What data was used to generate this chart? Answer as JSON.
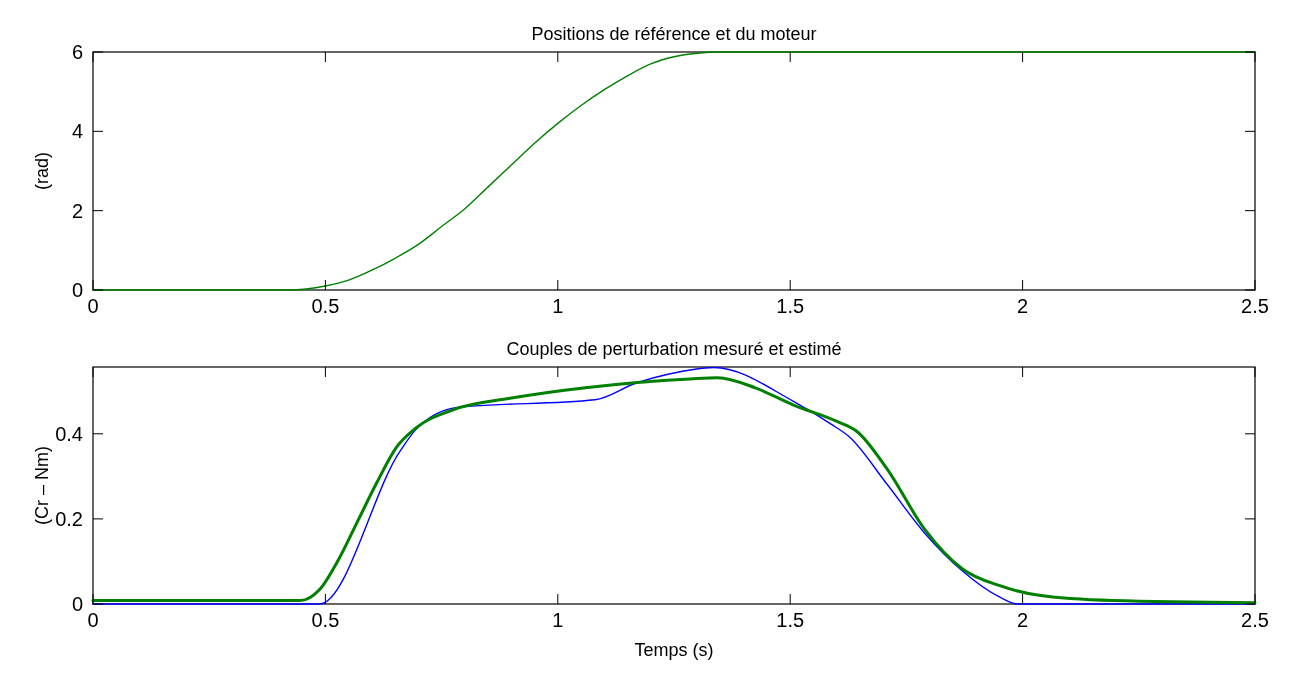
{
  "chart_data": [
    {
      "type": "line",
      "title": "Positions de référence et du moteur",
      "ylabel": "(rad)",
      "xlim": [
        0,
        2.5
      ],
      "xticks": [
        0,
        0.5,
        1,
        1.5,
        2,
        2.5
      ],
      "ylim": [
        0,
        6
      ],
      "yticks": [
        0,
        2,
        4,
        6
      ],
      "grid": false,
      "x": [
        0,
        0.42,
        0.5,
        0.55,
        0.6,
        0.65,
        0.7,
        0.75,
        0.8,
        0.85,
        0.9,
        0.95,
        1.0,
        1.05,
        1.1,
        1.15,
        1.2,
        1.25,
        1.3,
        1.35,
        2.5
      ],
      "series": [
        {
          "color": "#008000",
          "values": [
            0,
            0,
            0.1,
            0.25,
            0.5,
            0.8,
            1.15,
            1.6,
            2.05,
            2.6,
            3.15,
            3.7,
            4.2,
            4.65,
            5.05,
            5.4,
            5.7,
            5.88,
            5.97,
            6,
            6
          ]
        }
      ]
    },
    {
      "type": "line",
      "title": "Couples de perturbation mesuré et estimé",
      "xlabel": "Temps (s)",
      "ylabel": "(Cr – Nm)",
      "xlim": [
        0,
        2.5
      ],
      "xticks": [
        0,
        0.5,
        1,
        1.5,
        2,
        2.5
      ],
      "ylim": [
        0,
        0.557
      ],
      "yticks": [
        0,
        0.2,
        0.4
      ],
      "grid": false,
      "series": [
        {
          "color": "#0000ff",
          "x": [
            0,
            0.4875,
            0.66,
            0.693,
            0.784,
            1.08,
            1.17,
            1.237,
            1.336,
            1.506,
            1.587,
            1.627,
            1.708,
            1.789,
            1.87,
            1.951,
            1.99,
            2.5
          ],
          "values": [
            0,
            0,
            0.358,
            0.408,
            0.462,
            0.48,
            0.52,
            0.54,
            0.556,
            0.477,
            0.4235,
            0.393,
            0.282,
            0.167,
            0.078,
            0.016,
            0,
            0
          ]
        },
        {
          "color": "#008000",
          "x": [
            0,
            0.446,
            0.4875,
            0.529,
            0.57,
            0.611,
            0.652,
            0.693,
            0.776,
            0.9,
            1.064,
            1.284,
            1.344,
            1.425,
            1.506,
            1.603,
            1.643,
            1.708,
            1.789,
            1.87,
            1.951,
            2.032,
            2.194,
            2.5
          ],
          "values": [
            0.008,
            0.008,
            0.034,
            0.106,
            0.196,
            0.286,
            0.367,
            0.412,
            0.457,
            0.484,
            0.509,
            0.529,
            0.532,
            0.508,
            0.468,
            0.428,
            0.406,
            0.318,
            0.176,
            0.083,
            0.043,
            0.021,
            0.008,
            0.003
          ]
        }
      ]
    }
  ]
}
